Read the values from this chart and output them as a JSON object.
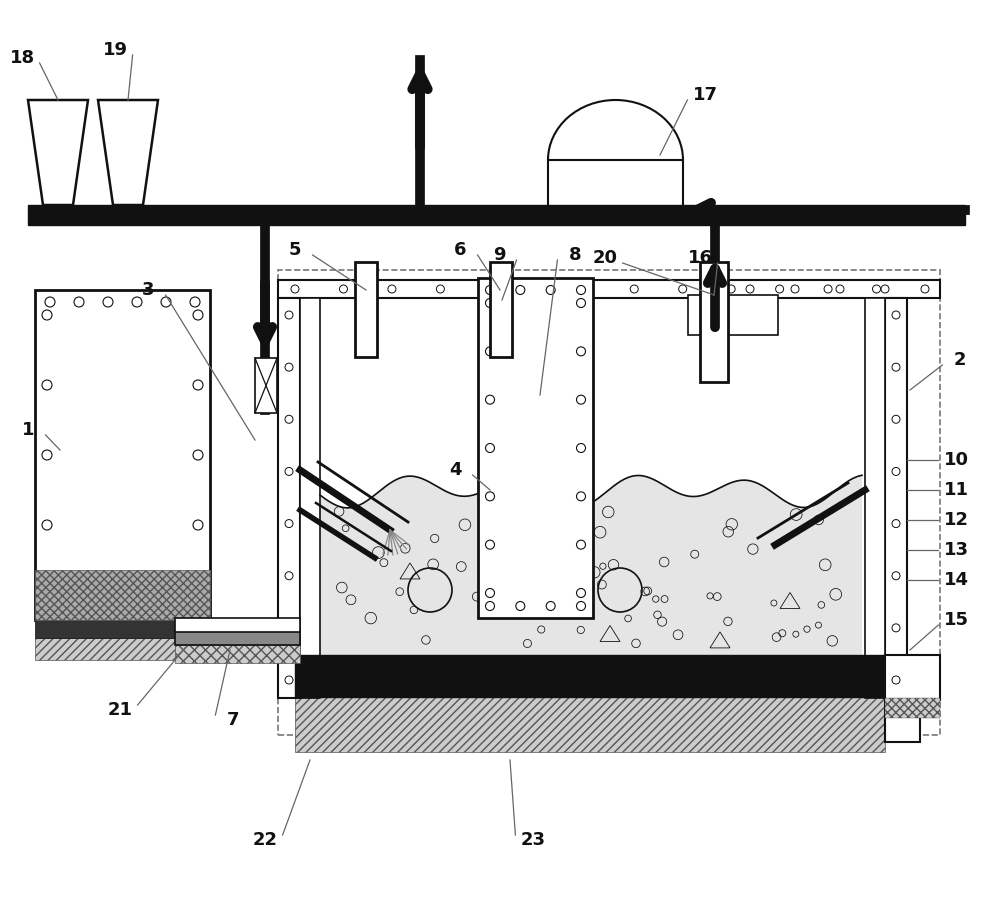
{
  "bg": "#ffffff",
  "lc": "#111111",
  "figsize": [
    10.0,
    8.97
  ]
}
